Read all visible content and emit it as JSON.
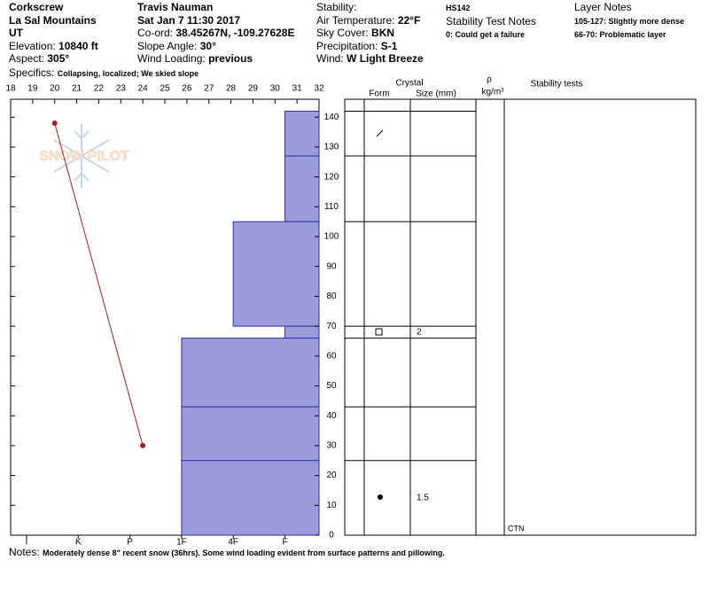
{
  "header": {
    "columns": [
      [
        {
          "value": "Corkscrew"
        },
        {
          "value": "La Sal Mountains"
        },
        {
          "value": "UT"
        },
        {
          "label": "Elevation:",
          "value": "10840 ft"
        },
        {
          "label": "Aspect:",
          "value": "305°"
        }
      ],
      [
        {
          "value": "Travis Nauman"
        },
        {
          "value": "Sat Jan 7 11:30 2017"
        },
        {
          "label": "Co-ord:",
          "value": "38.45267N, -109.27628E"
        },
        {
          "label": "Slope Angle:",
          "value": "30°"
        },
        {
          "label": "Wind Loading:",
          "value": "previous"
        }
      ],
      [
        {
          "label": "Stability:"
        },
        {
          "label": "Air Temperature:",
          "value": "22°F"
        },
        {
          "label": "Sky Cover:",
          "value": "BKN"
        },
        {
          "label": "Precipitation:",
          "value": "S-1"
        },
        {
          "label": "Wind:",
          "value": "W Light Breeze"
        }
      ],
      [
        {
          "value": "HS142"
        },
        {
          "label": "Stability Test Notes"
        },
        {
          "value": "0: Could get a failure"
        }
      ],
      [
        {
          "label": "Layer Notes"
        },
        {
          "value": "105-127: Slightly more dense"
        },
        {
          "value": "66-70: Problematic layer"
        }
      ]
    ],
    "specifics": {
      "label": "Specifics:",
      "value": "Collapsing, localized; We skied slope"
    }
  },
  "logo": "SNOW PILOT",
  "profile": {
    "xlim": [
      18,
      32
    ],
    "xticks": [
      18,
      19,
      20,
      21,
      22,
      23,
      24,
      25,
      26,
      27,
      28,
      29,
      30,
      31,
      32
    ],
    "ylim": [
      0,
      146
    ],
    "yticks": [
      0,
      10,
      20,
      30,
      40,
      50,
      60,
      70,
      80,
      90,
      100,
      110,
      120,
      130,
      140
    ],
    "temperature": {
      "depth": [
        138,
        30
      ],
      "temp": [
        20,
        24
      ],
      "color": "#a81c1c"
    },
    "hardness_labels": [
      "I",
      "K",
      "P",
      "1F",
      "4F",
      "F"
    ],
    "bar_color": "#9b9bdb",
    "bar_edge": "#2e2eb0",
    "layers": [
      {
        "top": 142,
        "bottom": 127,
        "hardness": "F"
      },
      {
        "top": 127,
        "bottom": 105,
        "hardness": "F"
      },
      {
        "top": 105,
        "bottom": 70,
        "hardness": "4F"
      },
      {
        "top": 70,
        "bottom": 66,
        "hardness": "F",
        "size": 2
      },
      {
        "top": 66,
        "bottom": 43,
        "hardness": "1F"
      },
      {
        "top": 43,
        "bottom": 25,
        "hardness": "1F"
      },
      {
        "top": 25,
        "bottom": 0,
        "hardness": "1F",
        "size": 1.5
      }
    ]
  },
  "table": {
    "crystal": "Crystal",
    "form": "Form",
    "size": "Size (mm)",
    "rho": "ρ",
    "density_unit": "kg/m³",
    "stability": "Stability tests",
    "test_result": "CTN"
  },
  "notes": {
    "label": "Notes:",
    "value": "Moderately dense 8\" recent snow (36hrs). Some wind loading evident from surface patterns and pillowing."
  }
}
